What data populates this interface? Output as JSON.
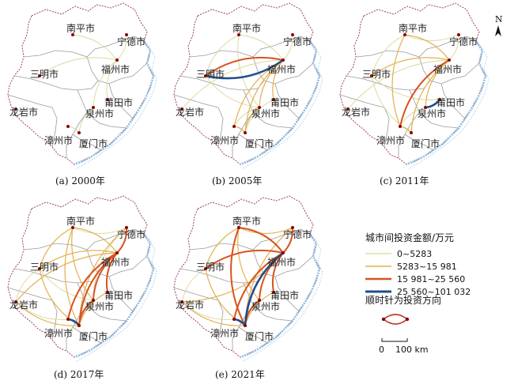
{
  "panels": [
    {
      "caption": "(a) 2000年",
      "flows": [
        {
          "from": "fz",
          "to": "sm",
          "cls": 0
        },
        {
          "from": "fz",
          "to": "np",
          "cls": 0
        },
        {
          "from": "fz",
          "to": "nd",
          "cls": 0
        },
        {
          "from": "fz",
          "to": "qz",
          "cls": 0
        },
        {
          "from": "fz",
          "to": "pt",
          "cls": 0
        },
        {
          "from": "xm",
          "to": "zz",
          "cls": 0
        },
        {
          "from": "qz",
          "to": "xm",
          "cls": 0
        }
      ]
    },
    {
      "caption": "(b) 2005年",
      "flows": [
        {
          "from": "sm",
          "to": "fz",
          "cls": 3
        },
        {
          "from": "fz",
          "to": "sm",
          "cls": 2
        },
        {
          "from": "fz",
          "to": "np",
          "cls": 0
        },
        {
          "from": "fz",
          "to": "nd",
          "cls": 0
        },
        {
          "from": "fz",
          "to": "pt",
          "cls": 1
        },
        {
          "from": "fz",
          "to": "qz",
          "cls": 1
        },
        {
          "from": "fz",
          "to": "xm",
          "cls": 1
        },
        {
          "from": "fz",
          "to": "zz",
          "cls": 1
        },
        {
          "from": "fz",
          "to": "ly",
          "cls": 0
        },
        {
          "from": "np",
          "to": "sm",
          "cls": 0
        },
        {
          "from": "qz",
          "to": "xm",
          "cls": 1
        },
        {
          "from": "qz",
          "to": "zz",
          "cls": 0
        },
        {
          "from": "xm",
          "to": "zz",
          "cls": 1
        },
        {
          "from": "sm",
          "to": "qz",
          "cls": 0
        },
        {
          "from": "pt",
          "to": "xm",
          "cls": 0
        },
        {
          "from": "np",
          "to": "qz",
          "cls": 0
        }
      ]
    },
    {
      "caption": "(c) 2011年",
      "flows": [
        {
          "from": "fz",
          "to": "zz",
          "cls": 2
        },
        {
          "from": "qz",
          "to": "pt",
          "cls": 3
        },
        {
          "from": "fz",
          "to": "sm",
          "cls": 1
        },
        {
          "from": "fz",
          "to": "np",
          "cls": 1
        },
        {
          "from": "fz",
          "to": "nd",
          "cls": 0
        },
        {
          "from": "fz",
          "to": "xm",
          "cls": 1
        },
        {
          "from": "fz",
          "to": "qz",
          "cls": 1
        },
        {
          "from": "fz",
          "to": "ly",
          "cls": 0
        },
        {
          "from": "np",
          "to": "zz",
          "cls": 1
        },
        {
          "from": "np",
          "to": "sm",
          "cls": 0
        },
        {
          "from": "sm",
          "to": "xm",
          "cls": 0
        },
        {
          "from": "xm",
          "to": "zz",
          "cls": 1
        },
        {
          "from": "qz",
          "to": "zz",
          "cls": 0
        },
        {
          "from": "np",
          "to": "nd",
          "cls": 0
        },
        {
          "from": "sm",
          "to": "pt",
          "cls": 0
        }
      ]
    },
    {
      "caption": "(d) 2017年",
      "flows": [
        {
          "from": "xm",
          "to": "zz",
          "cls": 3
        },
        {
          "from": "fz",
          "to": "xm",
          "cls": 2
        },
        {
          "from": "fz",
          "to": "qz",
          "cls": 2
        },
        {
          "from": "fz",
          "to": "pt",
          "cls": 2
        },
        {
          "from": "fz",
          "to": "nd",
          "cls": 2
        },
        {
          "from": "fz",
          "to": "zz",
          "cls": 2
        },
        {
          "from": "qz",
          "to": "xm",
          "cls": 2
        },
        {
          "from": "fz",
          "to": "np",
          "cls": 1
        },
        {
          "from": "fz",
          "to": "sm",
          "cls": 1
        },
        {
          "from": "fz",
          "to": "ly",
          "cls": 1
        },
        {
          "from": "np",
          "to": "sm",
          "cls": 1
        },
        {
          "from": "np",
          "to": "xm",
          "cls": 1
        },
        {
          "from": "sm",
          "to": "xm",
          "cls": 1
        },
        {
          "from": "ly",
          "to": "xm",
          "cls": 1
        },
        {
          "from": "nd",
          "to": "xm",
          "cls": 1
        },
        {
          "from": "pt",
          "to": "xm",
          "cls": 1
        },
        {
          "from": "np",
          "to": "nd",
          "cls": 0
        },
        {
          "from": "sm",
          "to": "ly",
          "cls": 0
        },
        {
          "from": "np",
          "to": "qz",
          "cls": 1
        },
        {
          "from": "ly",
          "to": "zz",
          "cls": 0
        },
        {
          "from": "sm",
          "to": "qz",
          "cls": 0
        },
        {
          "from": "nd",
          "to": "qz",
          "cls": 0
        }
      ]
    },
    {
      "caption": "(e) 2021年",
      "flows": [
        {
          "from": "fz",
          "to": "xm",
          "cls": 3
        },
        {
          "from": "xm",
          "to": "zz",
          "cls": 3
        },
        {
          "from": "fz",
          "to": "np",
          "cls": 2
        },
        {
          "from": "fz",
          "to": "nd",
          "cls": 2
        },
        {
          "from": "fz",
          "to": "qz",
          "cls": 2
        },
        {
          "from": "fz",
          "to": "pt",
          "cls": 2
        },
        {
          "from": "fz",
          "to": "sm",
          "cls": 2
        },
        {
          "from": "fz",
          "to": "zz",
          "cls": 2
        },
        {
          "from": "np",
          "to": "xm",
          "cls": 2
        },
        {
          "from": "qz",
          "to": "xm",
          "cls": 2
        },
        {
          "from": "np",
          "to": "sm",
          "cls": 1
        },
        {
          "from": "sm",
          "to": "xm",
          "cls": 1
        },
        {
          "from": "ly",
          "to": "xm",
          "cls": 1
        },
        {
          "from": "nd",
          "to": "xm",
          "cls": 1
        },
        {
          "from": "np",
          "to": "nd",
          "cls": 1
        },
        {
          "from": "sm",
          "to": "ly",
          "cls": 0
        },
        {
          "from": "ly",
          "to": "fz",
          "cls": 1
        },
        {
          "from": "np",
          "to": "qz",
          "cls": 1
        },
        {
          "from": "pt",
          "to": "xm",
          "cls": 1
        },
        {
          "from": "ly",
          "to": "zz",
          "cls": 0
        }
      ]
    }
  ],
  "cities": {
    "np": {
      "label": "南平市"
    },
    "nd": {
      "label": "宁德市"
    },
    "sm": {
      "label": "三明市"
    },
    "fz": {
      "label": "福州市"
    },
    "ly": {
      "label": "龙岩市"
    },
    "pt": {
      "label": "莆田市"
    },
    "qz": {
      "label": "泉州市"
    },
    "zz": {
      "label": "漳州市"
    },
    "xm": {
      "label": "厦门市"
    }
  },
  "legend": {
    "title": "城市间投资金额/万元",
    "classes": [
      {
        "label": "0~5283",
        "color": "#d9d79a"
      },
      {
        "label": "5283~15 981",
        "color": "#e3b04e"
      },
      {
        "label": "15 981~25 560",
        "color": "#d9531e"
      },
      {
        "label": "25 560~101 032",
        "color": "#1f4e8c"
      }
    ],
    "note": "顺时针为投资方向",
    "note_arc_color": "#c0392b",
    "note_dot_color": "#8b0000"
  },
  "scale": {
    "label": "0    100 km"
  },
  "north": {
    "label": "N"
  },
  "colors": {
    "coast": "#8ec8e8",
    "boundary": "#9a9a9a",
    "border_outer": "#a33b6b",
    "city_dot": "#8b0000"
  }
}
